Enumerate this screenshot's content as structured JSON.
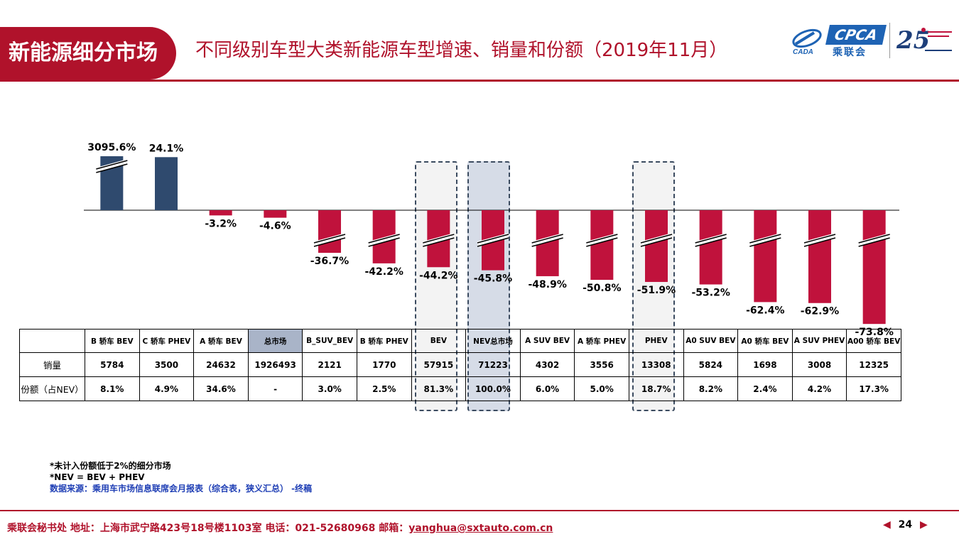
{
  "header": {
    "section_tag": "新能源细分市场",
    "title": "不同级别车型大类新能源车型增速、销量和份额（2019年11月）",
    "logo_cpca": "CPCA",
    "logo_cpca_sub": "乘联会"
  },
  "colors": {
    "brand_red": "#b0122b",
    "positive_bar": "#2f4a6e",
    "negative_bar": "#c0123c",
    "total_header": "#a9b4c8"
  },
  "chart_data": {
    "type": "bar",
    "categories": [
      "B 轿车 BEV",
      "C 轿车 PHEV",
      "A 轿车 BEV",
      "总市场",
      "B_SUV_BEV",
      "B 轿车 PHEV",
      "BEV",
      "NEV总市场",
      "A SUV BEV",
      "A 轿车 PHEV",
      "PHEV",
      "A0 SUV BEV",
      "A0 轿车 BEV",
      "A SUV PHEV",
      "A00 轿车 BEV"
    ],
    "series": [
      {
        "values": [
          3095.6,
          24.1,
          -3.2,
          -4.6,
          -36.7,
          -42.2,
          -44.2,
          -45.8,
          -48.9,
          -50.8,
          -51.9,
          -53.2,
          -62.4,
          -62.9,
          -73.8
        ]
      }
    ],
    "value_labels": [
      "3095.6%",
      "24.1%",
      "-3.2%",
      "-4.6%",
      "-36.7%",
      "-42.2%",
      "-44.2%",
      "-45.8%",
      "-48.9%",
      "-50.8%",
      "-51.9%",
      "-53.2%",
      "-62.4%",
      "-62.9%",
      "-73.8%"
    ],
    "axis_breaks": [
      true,
      false,
      false,
      false,
      true,
      true,
      true,
      true,
      true,
      true,
      true,
      true,
      true,
      true,
      true
    ],
    "highlighted": [
      "BEV",
      "NEV总市场",
      "PHEV"
    ],
    "unit": "%"
  },
  "table": {
    "columns": [
      "B 轿车 BEV",
      "C 轿车 PHEV",
      "A 轿车 BEV",
      "总市场",
      "B_SUV_BEV",
      "B 轿车 PHEV",
      "BEV",
      "NEV总市场",
      "A SUV BEV",
      "A 轿车 PHEV",
      "PHEV",
      "A0 SUV BEV",
      "A0 轿车 BEV",
      "A SUV PHEV",
      "A00 轿车 BEV"
    ],
    "rows": [
      {
        "label": "销量",
        "values": [
          "5784",
          "3500",
          "24632",
          "1926493",
          "2121",
          "1770",
          "57915",
          "71223",
          "4302",
          "3556",
          "13308",
          "5824",
          "1698",
          "3008",
          "12325"
        ]
      },
      {
        "label": "份额（占NEV）",
        "values": [
          "8.1%",
          "4.9%",
          "34.6%",
          "-",
          "3.0%",
          "2.5%",
          "81.3%",
          "100.0%",
          "6.0%",
          "5.0%",
          "18.7%",
          "8.2%",
          "2.4%",
          "4.2%",
          "17.3%"
        ]
      }
    ]
  },
  "notes": {
    "line1": "*未计入份额低于2%的细分市场",
    "line2": "*NEV = BEV + PHEV",
    "source": "数据来源：乘用车市场信息联席会月报表（综合表，狭义汇总） -终稿"
  },
  "footer": {
    "text": "乘联会秘书处   地址：上海市武宁路423号18号楼1103室  电话：021-52680968   邮箱：",
    "email": "yanghua@sxtauto.com.cn",
    "page": "24"
  }
}
